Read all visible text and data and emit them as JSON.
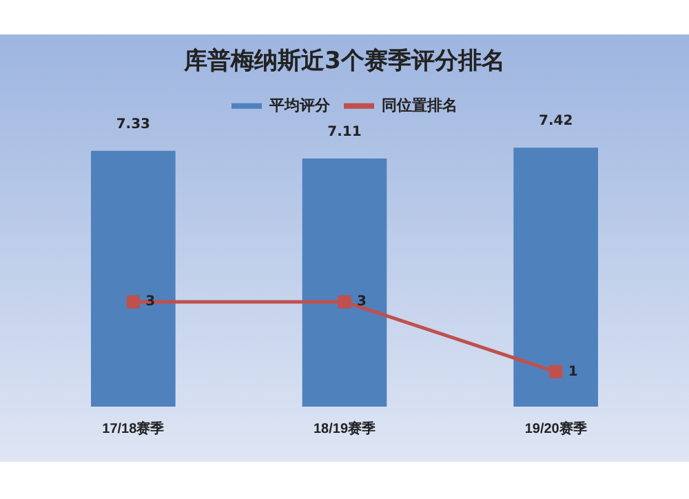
{
  "chart_data": {
    "type": "bar",
    "title": "库普梅纳斯近3个赛季评分排名",
    "categories": [
      "17/18赛季",
      "18/19赛季",
      "19/20赛季"
    ],
    "series": [
      {
        "name": "平均评分",
        "color": "#4f81bd",
        "values": [
          7.33,
          7.11,
          7.42
        ]
      },
      {
        "name": "同位置排名",
        "type": "line",
        "color": "#c0504d",
        "values": [
          3,
          3,
          1
        ]
      }
    ],
    "data_labels": true,
    "legend": "top",
    "marker": "square",
    "grid": false,
    "tick_labels": "x"
  }
}
